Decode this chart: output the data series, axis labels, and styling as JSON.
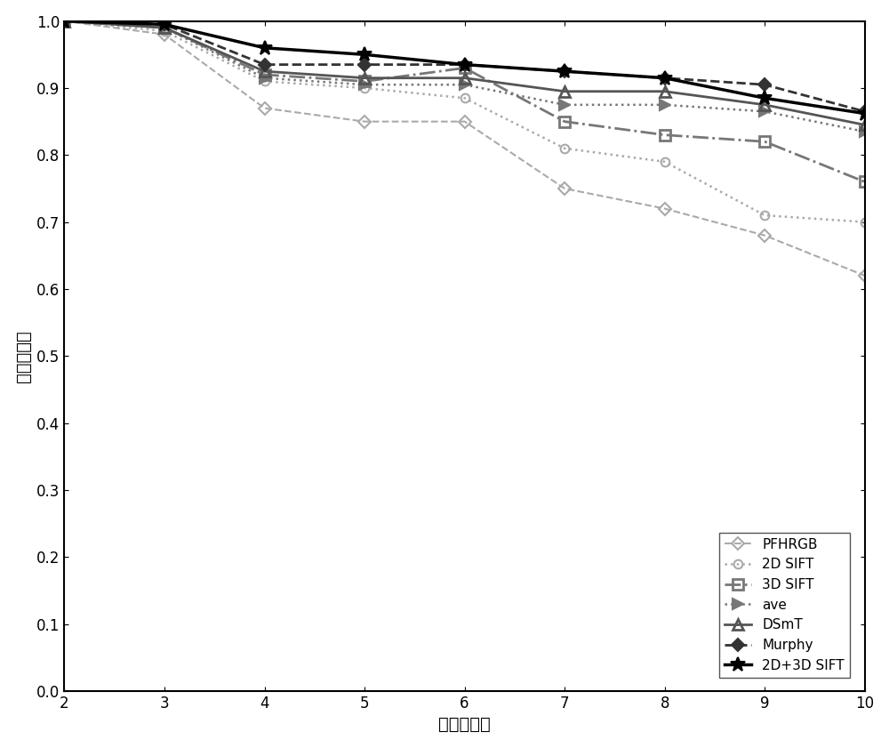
{
  "x": [
    2,
    3,
    4,
    5,
    6,
    7,
    8,
    9,
    10
  ],
  "PFHRGB": [
    1.0,
    0.98,
    0.87,
    0.85,
    0.85,
    0.75,
    0.72,
    0.68,
    0.62
  ],
  "2D_SIFT": [
    1.0,
    0.985,
    0.91,
    0.9,
    0.885,
    0.81,
    0.79,
    0.71,
    0.7
  ],
  "3D_SIFT": [
    1.0,
    0.99,
    0.92,
    0.91,
    0.93,
    0.85,
    0.83,
    0.82,
    0.76
  ],
  "ave": [
    1.0,
    0.99,
    0.915,
    0.905,
    0.905,
    0.875,
    0.875,
    0.865,
    0.835
  ],
  "DSmT": [
    1.0,
    0.99,
    0.925,
    0.915,
    0.915,
    0.895,
    0.895,
    0.875,
    0.845
  ],
  "Murphy": [
    1.0,
    0.995,
    0.935,
    0.935,
    0.935,
    0.925,
    0.915,
    0.905,
    0.865
  ],
  "2D3D_SIFT": [
    1.0,
    0.995,
    0.96,
    0.95,
    0.935,
    0.925,
    0.915,
    0.885,
    0.862
  ],
  "xlabel": "物体类别数",
  "ylabel": "正确识别率",
  "ylim": [
    0,
    1.0
  ],
  "yticks": [
    0,
    0.1,
    0.2,
    0.3,
    0.4,
    0.5,
    0.6,
    0.7,
    0.8,
    0.9,
    1.0
  ],
  "xticks": [
    2,
    3,
    4,
    5,
    6,
    7,
    8,
    9,
    10
  ],
  "background_color": "#ffffff",
  "legend_labels": [
    "PFHRGB",
    "2D SIFT",
    "3D SIFT",
    "ave",
    "DSmT",
    "Murphy",
    "2D+3D SIFT"
  ]
}
